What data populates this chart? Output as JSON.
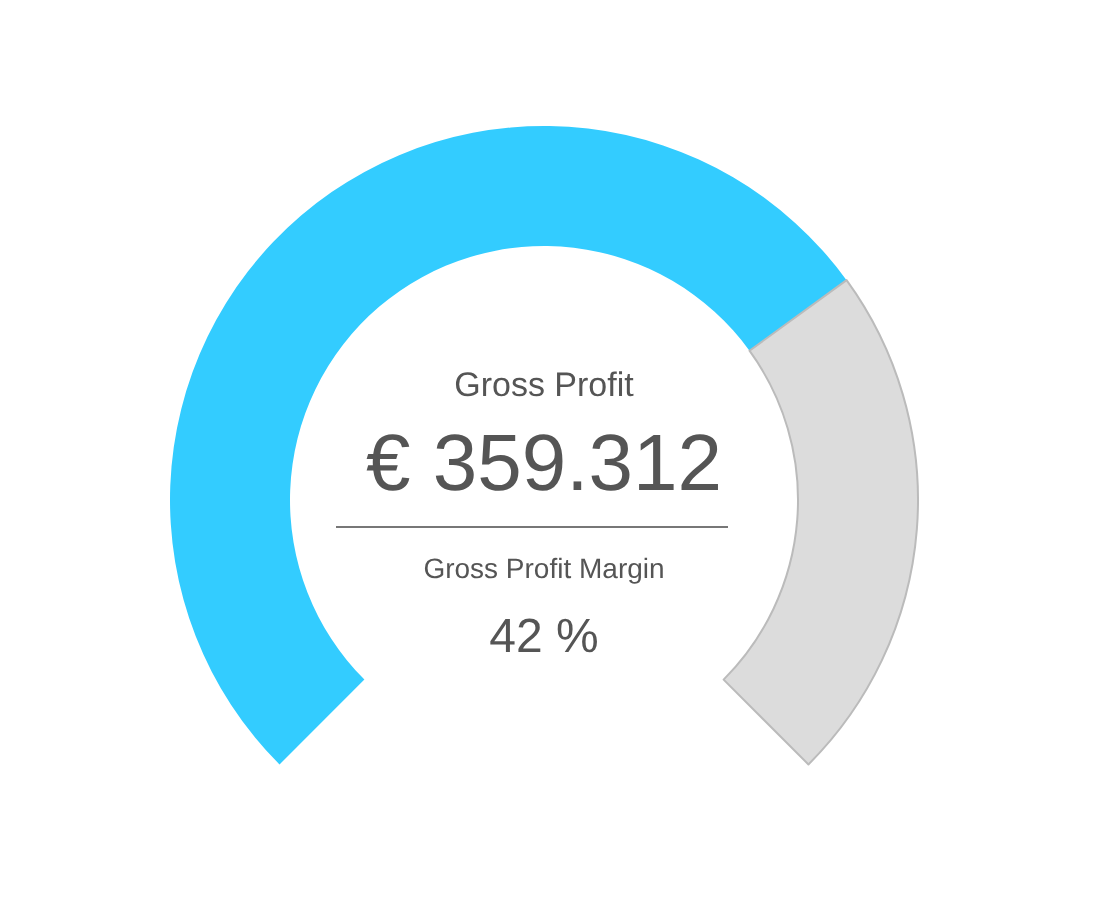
{
  "chart_data": {
    "type": "donut",
    "categories": [
      null,
      null
    ],
    "values": [
      70,
      30
    ],
    "colors": [
      "#33ccff",
      "#dcdcdc"
    ],
    "annotations": [
      "Gross Profit",
      "€ 359.312",
      "Gross Profit Margin",
      "42 %"
    ]
  }
}
